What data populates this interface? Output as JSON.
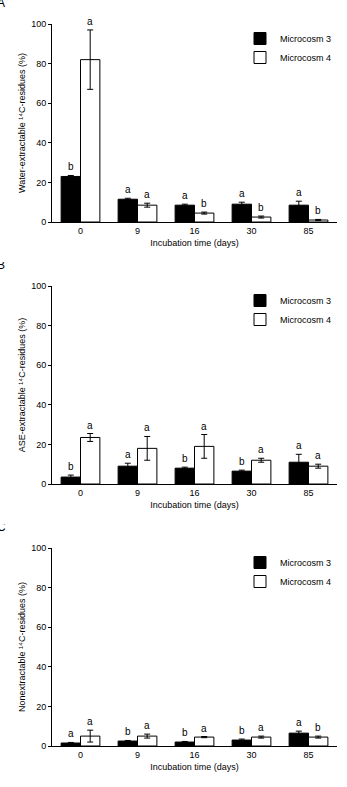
{
  "chart_data": [
    {
      "type": "bar",
      "title": "A",
      "x_label": "Incubation time (days)",
      "y_label": "Water-extractable ¹⁴C-residues (%)",
      "categories": [
        "0",
        "9",
        "16",
        "30",
        "85"
      ],
      "ylim": [
        0,
        100
      ],
      "yticks": [
        0,
        20,
        40,
        60,
        80,
        100
      ],
      "legend": "top right",
      "series": [
        {
          "name": "Microcosm 3",
          "color": "#000000",
          "values": [
            23,
            11.5,
            8.5,
            9,
            8.5
          ],
          "errors": [
            0.5,
            0.5,
            0.5,
            1,
            2
          ],
          "letters": [
            "b",
            "a",
            "a",
            "a",
            "a"
          ]
        },
        {
          "name": "Microcosm 4",
          "color": "#ffffff",
          "values": [
            82,
            8.5,
            4.5,
            2.5,
            1
          ],
          "errors": [
            15,
            1,
            0.5,
            0.5,
            0.3
          ],
          "letters": [
            "a",
            "a",
            "b",
            "b",
            "b"
          ]
        }
      ]
    },
    {
      "type": "bar",
      "title": "B",
      "x_label": "Incubation time (days)",
      "y_label": "ASE-extractable ¹⁴C-residues (%)",
      "categories": [
        "0",
        "9",
        "16",
        "30",
        "85"
      ],
      "ylim": [
        0,
        100
      ],
      "yticks": [
        0,
        20,
        40,
        60,
        80,
        100
      ],
      "legend": "top right",
      "series": [
        {
          "name": "Microcosm 3",
          "color": "#000000",
          "values": [
            3.5,
            9,
            8,
            6.5,
            11
          ],
          "errors": [
            1,
            1.5,
            0.5,
            0.5,
            4
          ],
          "letters": [
            "b",
            "a",
            "b",
            "b",
            "a"
          ]
        },
        {
          "name": "Microcosm 4",
          "color": "#ffffff",
          "values": [
            23.5,
            18,
            19,
            12,
            9
          ],
          "errors": [
            2,
            6,
            6,
            1,
            1
          ],
          "letters": [
            "a",
            "a",
            "a",
            "a",
            "a"
          ]
        }
      ]
    },
    {
      "type": "bar",
      "title": "C",
      "x_label": "Incubation time (days)",
      "y_label": "Nonextractable ¹⁴C-residues (%)",
      "categories": [
        "0",
        "9",
        "16",
        "30",
        "85"
      ],
      "ylim": [
        0,
        100
      ],
      "yticks": [
        0,
        20,
        40,
        60,
        80,
        100
      ],
      "legend": "top right",
      "series": [
        {
          "name": "Microcosm 3",
          "color": "#000000",
          "values": [
            1.5,
            2.5,
            2,
            3,
            6.5
          ],
          "errors": [
            0.3,
            0.3,
            0.3,
            0.5,
            1
          ],
          "letters": [
            "a",
            "b",
            "b",
            "b",
            "a"
          ]
        },
        {
          "name": "Microcosm 4",
          "color": "#ffffff",
          "values": [
            5,
            5,
            4.5,
            4.5,
            4.5
          ],
          "errors": [
            3,
            1,
            0.3,
            0.5,
            0.5
          ],
          "letters": [
            "a",
            "a",
            "a",
            "a",
            "b"
          ]
        }
      ]
    }
  ]
}
